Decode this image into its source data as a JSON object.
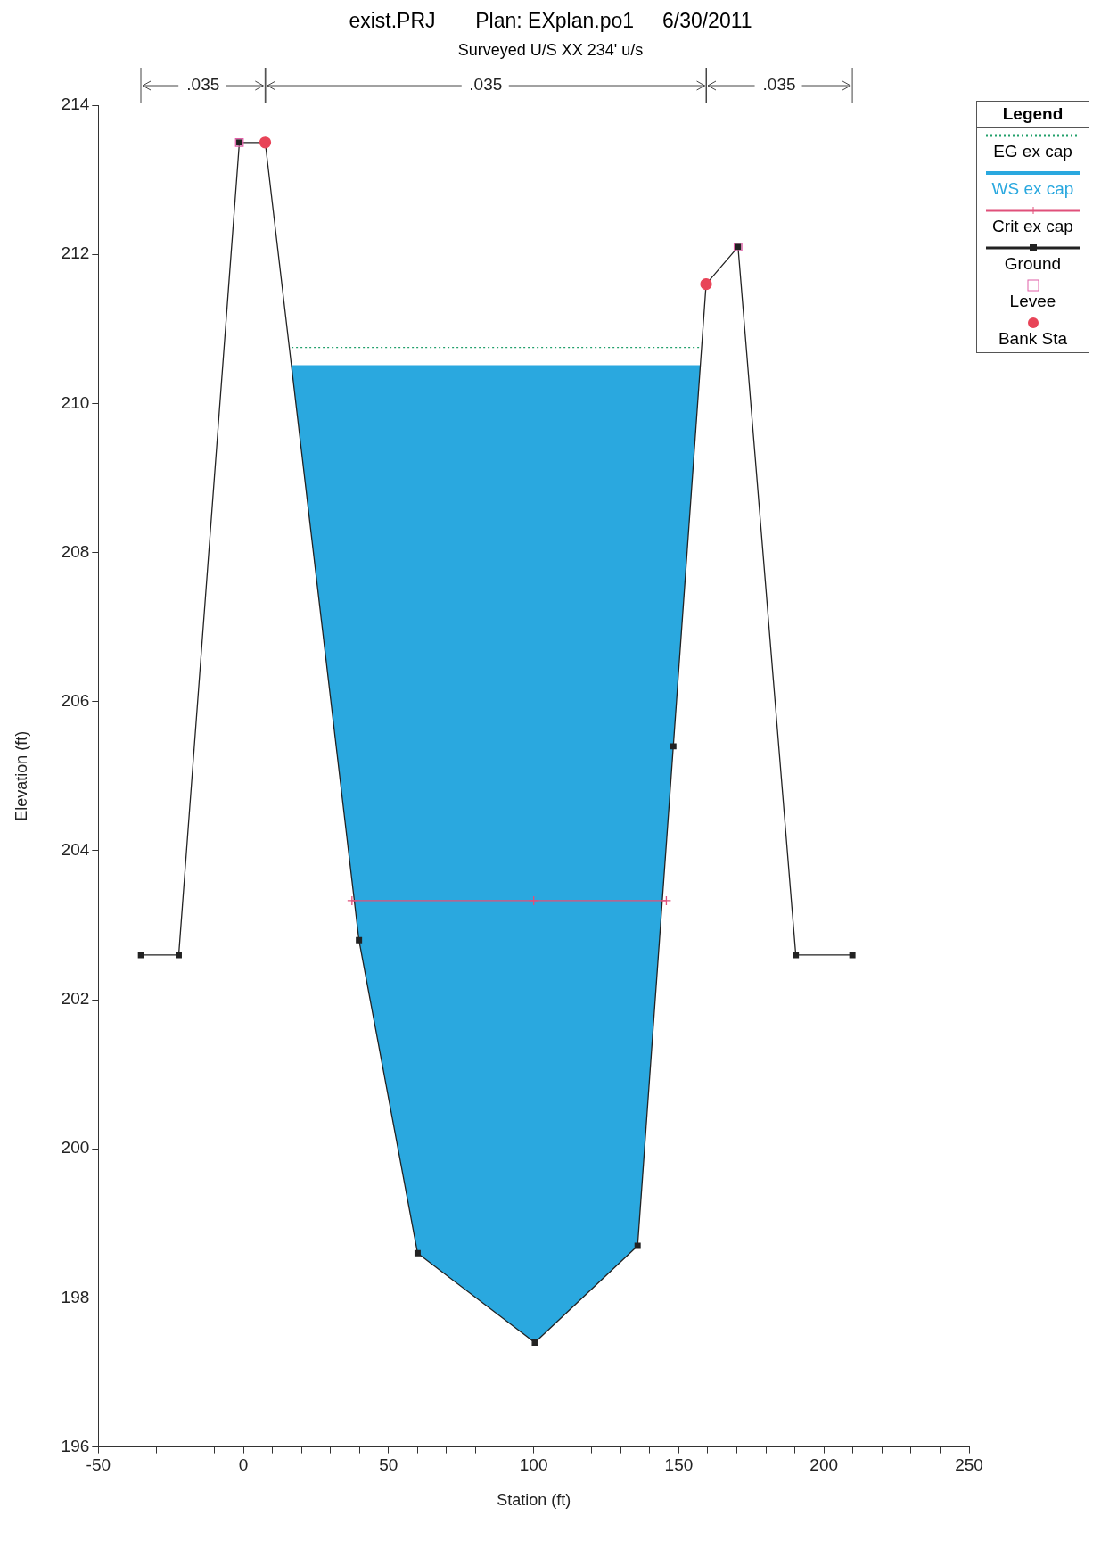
{
  "chart_data": {
    "type": "line",
    "title": "exist.PRJ       Plan: EXplan.po1     6/30/2011",
    "subtitle": "Surveyed U/S XX 234' u/s",
    "xlabel": "Station (ft)",
    "ylabel": "Elevation (ft)",
    "legend_title": "Legend",
    "legend": "right",
    "xlim": [
      -50,
      250
    ],
    "xticks": [
      -50,
      {
        "value": -40,
        "label": null
      },
      {
        "value": -30,
        "label": null
      },
      {
        "value": -20,
        "label": null
      },
      {
        "value": -10,
        "label": null
      },
      0,
      {
        "value": 10,
        "label": null
      },
      {
        "value": 20,
        "label": null
      },
      {
        "value": 30,
        "label": null
      },
      {
        "value": 40,
        "label": null
      },
      50,
      {
        "value": 60,
        "label": null
      },
      {
        "value": 70,
        "label": null
      },
      {
        "value": 80,
        "label": null
      },
      {
        "value": 90,
        "label": null
      },
      100,
      {
        "value": 110,
        "label": null
      },
      {
        "value": 120,
        "label": null
      },
      {
        "value": 130,
        "label": null
      },
      {
        "value": 140,
        "label": null
      },
      150,
      {
        "value": 160,
        "label": null
      },
      {
        "value": 170,
        "label": null
      },
      {
        "value": 180,
        "label": null
      },
      {
        "value": 190,
        "label": null
      },
      200,
      {
        "value": 210,
        "label": null
      },
      {
        "value": 220,
        "label": null
      },
      {
        "value": 230,
        "label": null
      },
      {
        "value": 240,
        "label": null
      },
      250
    ],
    "ylim": [
      196,
      214
    ],
    "yticks": [
      196,
      198,
      200,
      202,
      204,
      206,
      208,
      210,
      212,
      214
    ],
    "grid": false,
    "annotations": [
      ".035",
      ".035",
      ".035"
    ],
    "series": [
      {
        "name": "EG ex cap",
        "color": "#22a06b",
        "line_style": "dotted",
        "marker": "none",
        "x": [
          16.6,
          157.7
        ],
        "values": [
          210.75,
          210.75
        ]
      },
      {
        "name": "WS ex cap",
        "type": "area",
        "color": "#2aa8df",
        "marker": "none",
        "x": [
          16.6,
          157.7
        ],
        "values": [
          210.5,
          210.5
        ]
      },
      {
        "name": "Crit ex cap",
        "color": "#e0507a",
        "marker": "cross",
        "x": [
          37.4,
          100,
          145.7
        ],
        "values": [
          203.33,
          203.33,
          203.33
        ]
      },
      {
        "name": "Ground",
        "color": "#222222",
        "marker": "square",
        "x": [
          -35.3,
          -22.3,
          -1.4,
          7.5,
          39.8,
          60,
          100.4,
          135.8,
          148.1,
          159.4,
          170.4,
          190.3,
          209.8
        ],
        "values": [
          202.6,
          202.6,
          213.5,
          213.5,
          202.8,
          198.6,
          197.4,
          198.7,
          205.4,
          211.6,
          212.1,
          202.6,
          202.6
        ]
      },
      {
        "name": "Levee",
        "type": "scatter",
        "color": "#e060a8",
        "marker": "square",
        "x": [
          -1.4,
          170.4
        ],
        "values": [
          213.5,
          212.1
        ]
      },
      {
        "name": "Bank Sta",
        "type": "scatter",
        "color": "#e84458",
        "marker": "circle",
        "x": [
          7.5,
          159.4
        ],
        "values": [
          213.5,
          211.6
        ]
      }
    ]
  }
}
